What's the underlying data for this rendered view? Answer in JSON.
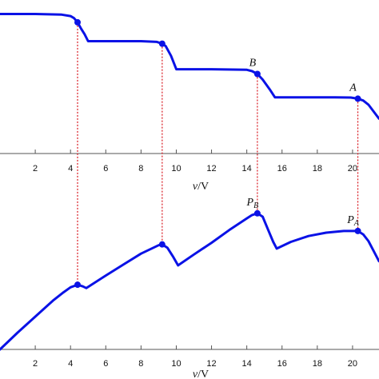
{
  "chart_data": [
    {
      "type": "line",
      "title": "",
      "xlabel": "v/V",
      "xlim": [
        0,
        21.5
      ],
      "ticks": [
        2,
        4,
        6,
        8,
        10,
        12,
        14,
        16,
        18,
        20
      ],
      "series": [
        {
          "x": [
            0,
            2,
            3.5,
            4.0,
            4.2,
            4.4,
            4.6,
            4.8,
            5.0,
            6,
            8,
            8.9,
            9.2,
            9.4,
            9.7,
            10.0,
            10.3,
            12,
            14,
            14.3,
            14.6,
            14.9,
            15.3,
            15.6,
            15.9,
            17,
            19,
            19.9,
            20.3,
            20.6,
            20.9,
            21.2,
            21.5
          ],
          "y": [
            1.0,
            1.0,
            0.995,
            0.985,
            0.97,
            0.94,
            0.895,
            0.855,
            0.805,
            0.805,
            0.805,
            0.8,
            0.787,
            0.77,
            0.7,
            0.604,
            0.604,
            0.604,
            0.6,
            0.59,
            0.57,
            0.53,
            0.46,
            0.402,
            0.402,
            0.402,
            0.402,
            0.401,
            0.393,
            0.38,
            0.35,
            0.3,
            0.25
          ]
        }
      ],
      "markers": [
        {
          "x": 4.4,
          "y": 0.94,
          "label": ""
        },
        {
          "x": 9.2,
          "y": 0.787,
          "label": ""
        },
        {
          "x": 14.6,
          "y": 0.57,
          "label": "B"
        },
        {
          "x": 20.3,
          "y": 0.393,
          "label": "A"
        }
      ],
      "ylim": [
        0,
        1.1
      ],
      "line_color": "#0a12e6"
    },
    {
      "type": "line",
      "title": "",
      "xlabel": "v/V",
      "xlim": [
        0,
        21.5
      ],
      "ticks": [
        2,
        4,
        6,
        8,
        10,
        12,
        14,
        16,
        18,
        20
      ],
      "series": [
        {
          "x": [
            0,
            1,
            2,
            3,
            3.6,
            4.0,
            4.4,
            4.7,
            4.9,
            6,
            7,
            8,
            9.0,
            9.2,
            9.5,
            9.8,
            10.1,
            11,
            12,
            13,
            14,
            14.3,
            14.6,
            14.9,
            15.2,
            15.5,
            15.7,
            16.5,
            17.5,
            18.5,
            19.5,
            20.0,
            20.3,
            20.6,
            20.9,
            21.2,
            21.5
          ],
          "y": [
            0.0,
            0.2,
            0.39,
            0.58,
            0.68,
            0.74,
            0.77,
            0.75,
            0.73,
            0.88,
            1.01,
            1.14,
            1.24,
            1.25,
            1.21,
            1.11,
            1.0,
            1.13,
            1.27,
            1.42,
            1.56,
            1.6,
            1.62,
            1.58,
            1.43,
            1.28,
            1.2,
            1.28,
            1.35,
            1.39,
            1.41,
            1.41,
            1.41,
            1.37,
            1.29,
            1.17,
            1.05
          ]
        }
      ],
      "markers": [
        {
          "x": 4.4,
          "y": 0.77,
          "label": ""
        },
        {
          "x": 9.2,
          "y": 1.25,
          "label": ""
        },
        {
          "x": 14.6,
          "y": 1.62,
          "label": "P",
          "sub": "B"
        },
        {
          "x": 20.3,
          "y": 1.41,
          "label": "P",
          "sub": "A"
        }
      ],
      "ylim": [
        0,
        1.78
      ],
      "line_color": "#0a12e6"
    }
  ],
  "connector_color": "#d8141c"
}
